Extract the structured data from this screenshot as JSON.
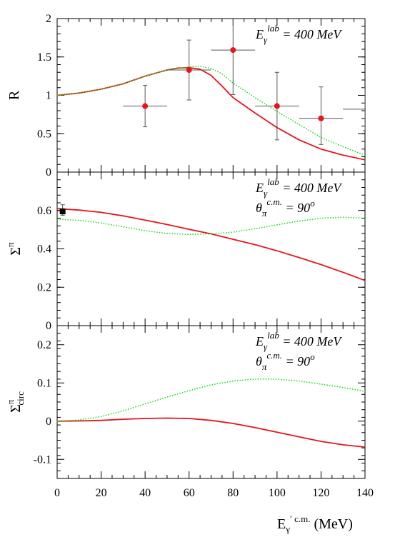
{
  "chart_data": [
    {
      "type": "line",
      "ylabel": "R",
      "ylim": [
        0,
        2
      ],
      "xlim": [
        0,
        140
      ],
      "yticks": [
        "0",
        "0.5",
        "1",
        "1.5",
        "2"
      ],
      "annotation": {
        "main": "E",
        "sub": "γ",
        "sup": "lab",
        "rest": " = 400 MeV"
      },
      "colors": {
        "solid": "#e8141a",
        "dotted": "#22dd22",
        "points": "#e8141a",
        "errors": "#555555"
      },
      "series": [
        {
          "style": "solid",
          "x": [
            0,
            10,
            20,
            30,
            40,
            50,
            55,
            60,
            65,
            70,
            75,
            80,
            90,
            100,
            110,
            120,
            130,
            140
          ],
          "y": [
            1.0,
            1.03,
            1.08,
            1.15,
            1.25,
            1.33,
            1.355,
            1.36,
            1.34,
            1.26,
            1.12,
            0.97,
            0.77,
            0.58,
            0.42,
            0.3,
            0.22,
            0.16
          ]
        },
        {
          "style": "dotted",
          "x": [
            0,
            10,
            20,
            30,
            40,
            50,
            60,
            65,
            70,
            75,
            80,
            90,
            100,
            110,
            120,
            130,
            140
          ],
          "y": [
            1.0,
            1.03,
            1.08,
            1.15,
            1.25,
            1.33,
            1.37,
            1.38,
            1.35,
            1.28,
            1.16,
            0.97,
            0.79,
            0.62,
            0.45,
            0.33,
            0.22
          ]
        }
      ],
      "points": [
        {
          "x": 40,
          "y": 0.86,
          "xerr": 10,
          "yerr_lo": 0.27,
          "yerr_hi": 0.27,
          "marker": true
        },
        {
          "x": 60,
          "y": 1.33,
          "xerr": 10,
          "yerr_lo": 0.39,
          "yerr_hi": 0.39,
          "marker": true
        },
        {
          "x": 80,
          "y": 1.59,
          "xerr": 10,
          "yerr_lo": 0.58,
          "yerr_hi": 0.58,
          "marker": true
        },
        {
          "x": 100,
          "y": 0.86,
          "xerr": 10,
          "yerr_lo": 0.44,
          "yerr_hi": 0.44,
          "marker": true
        },
        {
          "x": 120,
          "y": 0.7,
          "xerr": 10,
          "yerr_lo": 0.34,
          "yerr_hi": 0.41,
          "marker": true
        },
        {
          "x": 140,
          "y": 0.82,
          "xerr": 10,
          "yerr_lo": 0.28,
          "yerr_hi": 0.28,
          "marker": false
        }
      ]
    },
    {
      "type": "line",
      "ylabel": "Σ",
      "ylabel_sup": "π",
      "ylim": [
        0,
        0.8
      ],
      "xlim": [
        0,
        140
      ],
      "yticks": [
        "0",
        "0.2",
        "0.4",
        "0.6"
      ],
      "annotation": {
        "main": "E",
        "sub": "γ",
        "sup": "lab",
        "rest": " = 400 MeV"
      },
      "annotation2": {
        "main": "θ",
        "sub": "π",
        "sup": "c.m.",
        "rest": " = 90",
        "rest_sup": "o"
      },
      "series": [
        {
          "style": "solid",
          "x": [
            0,
            10,
            20,
            30,
            40,
            50,
            60,
            70,
            80,
            90,
            100,
            110,
            120,
            130,
            140
          ],
          "y": [
            0.61,
            0.602,
            0.59,
            0.572,
            0.55,
            0.527,
            0.502,
            0.478,
            0.45,
            0.422,
            0.39,
            0.355,
            0.318,
            0.278,
            0.235
          ]
        },
        {
          "style": "dotted",
          "x": [
            0,
            10,
            20,
            30,
            40,
            50,
            60,
            70,
            80,
            90,
            100,
            110,
            120,
            130,
            140
          ],
          "y": [
            0.555,
            0.548,
            0.535,
            0.515,
            0.495,
            0.48,
            0.475,
            0.478,
            0.487,
            0.505,
            0.525,
            0.545,
            0.56,
            0.565,
            0.56
          ]
        }
      ],
      "points": [
        {
          "x": 2.5,
          "y": 0.595,
          "yerr_lo": 0.02,
          "yerr_hi": 0.035,
          "marker": "square"
        }
      ]
    },
    {
      "type": "line",
      "ylabel": "Σ",
      "ylabel_sup": "π",
      "ylabel_sub": "circ",
      "ylim": [
        -0.15,
        0.25
      ],
      "xlim": [
        0,
        140
      ],
      "yticks": [
        "-0.1",
        "0",
        "0.1",
        "0.2"
      ],
      "xticks": [
        "0",
        "20",
        "40",
        "60",
        "80",
        "100",
        "120",
        "140"
      ],
      "annotation": {
        "main": "E",
        "sub": "γ",
        "sup": "lab",
        "rest": " = 400 MeV"
      },
      "annotation2": {
        "main": "θ",
        "sub": "π",
        "sup": "c.m.",
        "rest": " = 90",
        "rest_sup": "o"
      },
      "series": [
        {
          "style": "solid",
          "x": [
            0,
            10,
            20,
            30,
            40,
            50,
            60,
            70,
            80,
            90,
            100,
            110,
            120,
            130,
            140
          ],
          "y": [
            0.0,
            0.0005,
            0.002,
            0.005,
            0.007,
            0.008,
            0.007,
            0.002,
            -0.006,
            -0.017,
            -0.029,
            -0.041,
            -0.053,
            -0.062,
            -0.068
          ]
        },
        {
          "style": "dotted",
          "x": [
            0,
            10,
            20,
            30,
            40,
            50,
            60,
            70,
            80,
            90,
            100,
            110,
            120,
            130,
            140
          ],
          "y": [
            0.0,
            0.003,
            0.012,
            0.027,
            0.045,
            0.063,
            0.08,
            0.095,
            0.105,
            0.11,
            0.11,
            0.105,
            0.097,
            0.088,
            0.078
          ]
        }
      ]
    }
  ],
  "xlabel": {
    "main": "E",
    "sub": "γ",
    "sup": "′ c.m.",
    "rest": " (MeV)"
  }
}
